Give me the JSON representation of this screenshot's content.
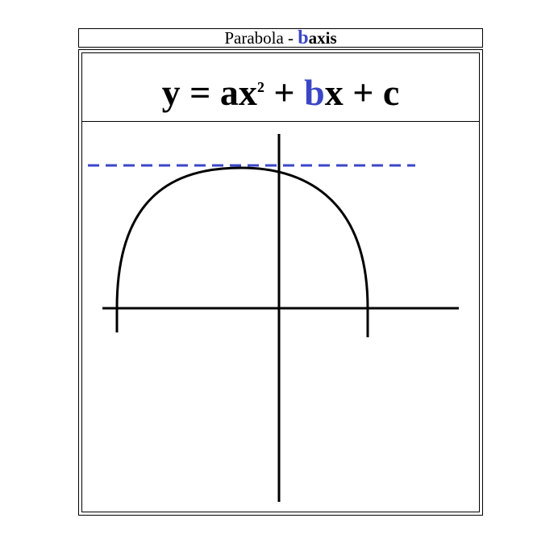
{
  "title": {
    "prefix": "Parabola - ",
    "highlight": "b",
    "suffix": "axis"
  },
  "formula": {
    "lhs": "y = ax",
    "exponent": "²",
    "plus1": " + ",
    "highlight": "b",
    "rest": "x + c"
  },
  "colors": {
    "accent": "#3b46c7",
    "ink": "#000000",
    "background": "#ffffff"
  }
}
